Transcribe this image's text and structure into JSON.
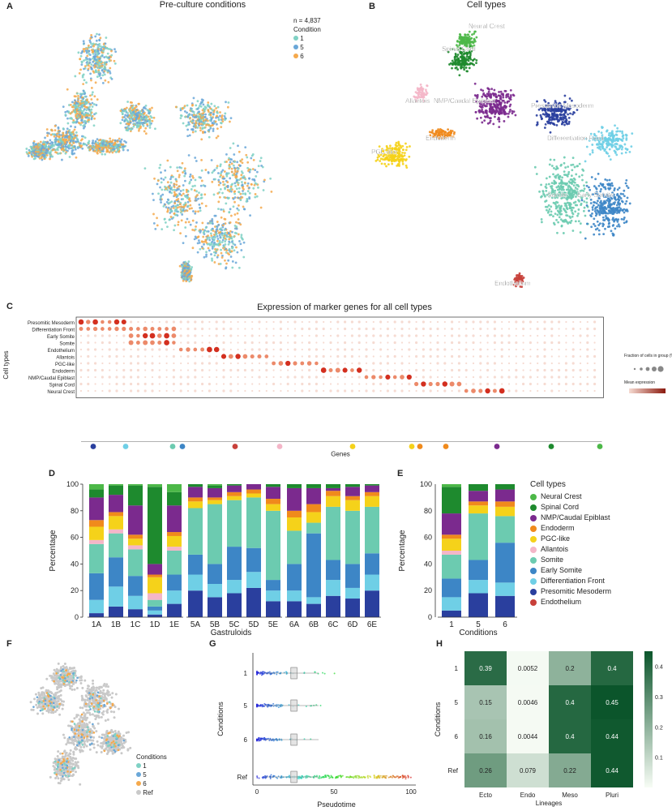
{
  "panels": {
    "A": {
      "letter": "A",
      "title": "Pre-culture conditions",
      "n_label": "n = 4,837",
      "legend_title": "Condition",
      "conditions": [
        {
          "label": "1",
          "color": "#7fd1c4"
        },
        {
          "label": "5",
          "color": "#6aa7d8"
        },
        {
          "label": "6",
          "color": "#f5a94c"
        }
      ]
    },
    "B": {
      "letter": "B",
      "title": "Cell types",
      "labels": [
        "Neural Crest",
        "Spinal Cord",
        "NMP/Caudal Epiblast",
        "Allantois",
        "PGC-like",
        "Endoderm",
        "Presomitic Mesoderm",
        "Differentiation Front",
        "Somite",
        "Early Somite",
        "Endothelium"
      ]
    },
    "C": {
      "letter": "C",
      "title": "Expression of marker genes for all cell types",
      "ylabel": "Cell types",
      "xlabel": "Genes",
      "rows": [
        "Presomitic Mesoderm",
        "Differentiation Front",
        "Early Somite",
        "Somite",
        "Endothelium",
        "Allantois",
        "PGC-like",
        "Endoderm",
        "NMP/Caudal Epiblast",
        "Spinal Cord",
        "Neural Crest"
      ],
      "legend_title": "Fraction of cells in group (%)",
      "legend2": "Mean expression"
    },
    "D": {
      "letter": "D",
      "ylabel": "Percentage",
      "xlabel": "Gastruloids",
      "yticks": [
        "0",
        "20",
        "40",
        "60",
        "80",
        "100"
      ],
      "groups": [
        [
          "1A",
          "1B",
          "1C",
          "1D",
          "1E"
        ],
        [
          "5A",
          "5B",
          "5C",
          "5D",
          "5E"
        ],
        [
          "6A",
          "6B",
          "6C",
          "6D",
          "6E"
        ]
      ]
    },
    "E": {
      "letter": "E",
      "ylabel": "Percentage",
      "xlabel": "Conditions",
      "categories": [
        "1",
        "5",
        "6"
      ],
      "legend_title": "Cell types"
    },
    "F": {
      "letter": "F",
      "legend_title": "Conditions",
      "conditions": [
        "1",
        "5",
        "6",
        "Ref"
      ]
    },
    "G": {
      "letter": "G",
      "ylabel": "Conditions",
      "xlabel": "Pseudotime",
      "rows": [
        "1",
        "5",
        "6",
        "Ref"
      ],
      "xticks": [
        "0",
        "50",
        "100"
      ]
    },
    "H": {
      "letter": "H",
      "ylabel": "Conditions",
      "xlabel": "Lineages",
      "cbar_label": "Ratio",
      "cbar_ticks": [
        "0.1",
        "0.2",
        "0.3",
        "0.4"
      ]
    }
  },
  "cell_types": [
    {
      "name": "Neural Crest",
      "color": "#4cb848"
    },
    {
      "name": "Spinal Cord",
      "color": "#1e8a2e"
    },
    {
      "name": "NMP/Caudal Epiblast",
      "color": "#7b2a8e"
    },
    {
      "name": "Endoderm",
      "color": "#f08a1c"
    },
    {
      "name": "PGC-like",
      "color": "#f5d21a"
    },
    {
      "name": "Allantois",
      "color": "#f4b6c8"
    },
    {
      "name": "Somite",
      "color": "#6ccbb0"
    },
    {
      "name": "Early Somite",
      "color": "#3d86c6"
    },
    {
      "name": "Differentiation Front",
      "color": "#6fcfe6"
    },
    {
      "name": "Presomitic Mesoderm",
      "color": "#2a3f9e"
    },
    {
      "name": "Endothelium",
      "color": "#c8403a"
    }
  ],
  "chart_data": [
    {
      "type": "bar",
      "panel": "D",
      "title": "",
      "xlabel": "Gastruloids",
      "ylabel": "Percentage",
      "ylim": [
        0,
        100
      ],
      "categories": [
        "1A",
        "1B",
        "1C",
        "1D",
        "1E",
        "5A",
        "5B",
        "5C",
        "5D",
        "5E",
        "6A",
        "6B",
        "6C",
        "6D",
        "6E"
      ],
      "stack_order_bottom_to_top": [
        "Endothelium",
        "Presomitic Mesoderm",
        "Differentiation Front",
        "Early Somite",
        "Somite",
        "Allantois",
        "PGC-like",
        "Endoderm",
        "NMP/Caudal Epiblast",
        "Spinal Cord",
        "Neural Crest"
      ],
      "series": [
        {
          "name": "Endothelium",
          "values": [
            0,
            0,
            0,
            0,
            0,
            0,
            0,
            0,
            0,
            0,
            0,
            0,
            0,
            0,
            0
          ]
        },
        {
          "name": "Presomitic Mesoderm",
          "values": [
            3,
            8,
            6,
            2,
            10,
            20,
            15,
            18,
            22,
            12,
            12,
            10,
            16,
            14,
            20
          ]
        },
        {
          "name": "Differentiation Front",
          "values": [
            10,
            15,
            10,
            3,
            10,
            12,
            10,
            10,
            12,
            8,
            8,
            5,
            12,
            8,
            12
          ]
        },
        {
          "name": "Early Somite",
          "values": [
            20,
            22,
            15,
            3,
            12,
            15,
            15,
            25,
            18,
            8,
            20,
            48,
            15,
            18,
            16
          ]
        },
        {
          "name": "Somite",
          "values": [
            22,
            18,
            20,
            5,
            18,
            35,
            45,
            35,
            38,
            52,
            25,
            8,
            40,
            40,
            35
          ]
        },
        {
          "name": "Allantois",
          "values": [
            3,
            3,
            3,
            5,
            3,
            0,
            0,
            0,
            0,
            0,
            0,
            0,
            0,
            0,
            0
          ]
        },
        {
          "name": "PGC-like",
          "values": [
            10,
            10,
            5,
            12,
            8,
            5,
            3,
            3,
            3,
            5,
            10,
            8,
            8,
            8,
            8
          ]
        },
        {
          "name": "Endoderm",
          "values": [
            5,
            3,
            3,
            2,
            3,
            3,
            2,
            3,
            3,
            4,
            5,
            6,
            4,
            3,
            3
          ]
        },
        {
          "name": "NMP/Caudal Epiblast",
          "values": [
            17,
            13,
            22,
            8,
            20,
            8,
            7,
            5,
            4,
            9,
            17,
            12,
            2,
            7,
            5
          ]
        },
        {
          "name": "Spinal Cord",
          "values": [
            6,
            7,
            15,
            58,
            10,
            2,
            2,
            1,
            0,
            2,
            3,
            3,
            3,
            2,
            1
          ]
        },
        {
          "name": "Neural Crest",
          "values": [
            4,
            1,
            1,
            2,
            6,
            0,
            1,
            0,
            0,
            0,
            0,
            0,
            0,
            0,
            0
          ]
        }
      ]
    },
    {
      "type": "bar",
      "panel": "E",
      "title": "",
      "xlabel": "Conditions",
      "ylabel": "Percentage",
      "ylim": [
        0,
        100
      ],
      "categories": [
        "1",
        "5",
        "6"
      ],
      "series": [
        {
          "name": "Endothelium",
          "values": [
            0,
            0,
            0
          ]
        },
        {
          "name": "Presomitic Mesoderm",
          "values": [
            5,
            18,
            16
          ]
        },
        {
          "name": "Differentiation Front",
          "values": [
            10,
            10,
            10
          ]
        },
        {
          "name": "Early Somite",
          "values": [
            14,
            15,
            30
          ]
        },
        {
          "name": "Somite",
          "values": [
            18,
            35,
            20
          ]
        },
        {
          "name": "Allantois",
          "values": [
            3,
            0,
            0
          ]
        },
        {
          "name": "PGC-like",
          "values": [
            9,
            6,
            7
          ]
        },
        {
          "name": "Endoderm",
          "values": [
            3,
            3,
            4
          ]
        },
        {
          "name": "NMP/Caudal Epiblast",
          "values": [
            16,
            8,
            9
          ]
        },
        {
          "name": "Spinal Cord",
          "values": [
            20,
            5,
            4
          ]
        },
        {
          "name": "Neural Crest",
          "values": [
            2,
            0,
            0
          ]
        }
      ]
    },
    {
      "type": "heatmap",
      "panel": "H",
      "xlabel": "Lineages",
      "ylabel": "Conditions",
      "x": [
        "Ecto",
        "Endo",
        "Meso",
        "Pluri"
      ],
      "y": [
        "1",
        "5",
        "6",
        "Ref"
      ],
      "values": [
        [
          0.39,
          0.0052,
          0.2,
          0.4
        ],
        [
          0.15,
          0.0046,
          0.4,
          0.45
        ],
        [
          0.16,
          0.0044,
          0.4,
          0.44
        ],
        [
          0.26,
          0.079,
          0.22,
          0.44
        ]
      ],
      "labels": [
        [
          "0.39",
          "0.0052",
          "0.2",
          "0.4"
        ],
        [
          "0.15",
          "0.0046",
          "0.4",
          "0.45"
        ],
        [
          "0.16",
          "0.0044",
          "0.4",
          "0.44"
        ],
        [
          "0.26",
          "0.079",
          "0.22",
          "0.44"
        ]
      ],
      "zlim": [
        0,
        0.45
      ]
    }
  ]
}
